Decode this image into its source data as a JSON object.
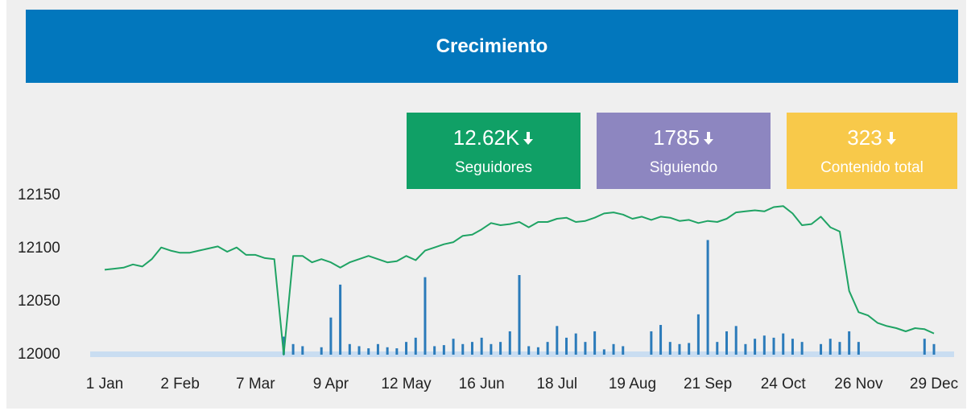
{
  "header": {
    "title": "Crecimiento"
  },
  "kpis": [
    {
      "value": "12.62K",
      "label": "Seguidores",
      "color": "#10a066"
    },
    {
      "value": "1785",
      "label": "Siguiendo",
      "color": "#8d86c0"
    },
    {
      "value": "323",
      "label": "Contenido total",
      "color": "#f8c94a"
    }
  ],
  "chart_data": {
    "type": "line",
    "categories": [
      "1 Jan",
      null,
      null,
      null,
      null,
      null,
      null,
      null,
      "2 Feb",
      null,
      null,
      null,
      null,
      null,
      null,
      null,
      "7 Mar",
      null,
      null,
      null,
      null,
      null,
      null,
      null,
      "9 Apr",
      null,
      null,
      null,
      null,
      null,
      null,
      null,
      "12 May",
      null,
      null,
      null,
      null,
      null,
      null,
      null,
      "16 Jun",
      null,
      null,
      null,
      null,
      null,
      null,
      null,
      "18 Jul",
      null,
      null,
      null,
      null,
      null,
      null,
      null,
      "19 Aug",
      null,
      null,
      null,
      null,
      null,
      null,
      null,
      "21 Sep",
      null,
      null,
      null,
      null,
      null,
      null,
      null,
      "24 Oct",
      null,
      null,
      null,
      null,
      null,
      null,
      null,
      "26 Nov",
      null,
      null,
      null,
      null,
      null,
      null,
      null,
      "29 Dec"
    ],
    "series": [
      {
        "type": "line",
        "color": "#1fa364",
        "values": [
          12080,
          12081,
          12082,
          12085,
          12083,
          12090,
          12101,
          12098,
          12096,
          12096,
          12098,
          12100,
          12102,
          12097,
          12101,
          12094,
          12094,
          12091,
          12090,
          12000,
          12093,
          12093,
          12087,
          12090,
          12087,
          12082,
          12087,
          12090,
          12093,
          12090,
          12087,
          12088,
          12093,
          12089,
          12098,
          12101,
          12104,
          12106,
          12112,
          12113,
          12118,
          12124,
          12122,
          12123,
          12125,
          12120,
          12125,
          12125,
          12128,
          12129,
          12125,
          12126,
          12129,
          12133,
          12134,
          12132,
          12128,
          12130,
          12127,
          12130,
          12129,
          12126,
          12127,
          12124,
          12126,
          12125,
          12128,
          12134,
          12135,
          12136,
          12135,
          12139,
          12140,
          12133,
          12122,
          12123,
          12130,
          12120,
          12116,
          12060,
          12040,
          12037,
          12030,
          12027,
          12025,
          12022,
          12025,
          12024,
          12020
        ]
      },
      {
        "type": "bar",
        "color": "#2b7bba",
        "values": [
          null,
          null,
          null,
          null,
          null,
          null,
          null,
          null,
          null,
          null,
          null,
          null,
          null,
          null,
          null,
          null,
          null,
          null,
          null,
          12017,
          12010,
          12008,
          null,
          12007,
          12035,
          12066,
          12010,
          12008,
          12006,
          12010,
          12007,
          12006,
          12012,
          12016,
          12073,
          12008,
          12009,
          12015,
          12010,
          12012,
          12016,
          12010,
          12012,
          12022,
          12075,
          12008,
          12007,
          12012,
          12027,
          12016,
          12020,
          12012,
          12022,
          12005,
          12010,
          12008,
          null,
          null,
          12022,
          12028,
          12012,
          12010,
          12011,
          12038,
          12108,
          12012,
          12022,
          12027,
          12010,
          12015,
          12018,
          12016,
          12020,
          12015,
          12012,
          null,
          12010,
          12015,
          12012,
          12022,
          12012,
          null,
          null,
          null,
          null,
          null,
          null,
          12015,
          12010
        ]
      }
    ],
    "ylim": [
      12000,
      12150
    ],
    "yticks": [
      12000,
      12050,
      12100,
      12150
    ],
    "grid": false
  }
}
